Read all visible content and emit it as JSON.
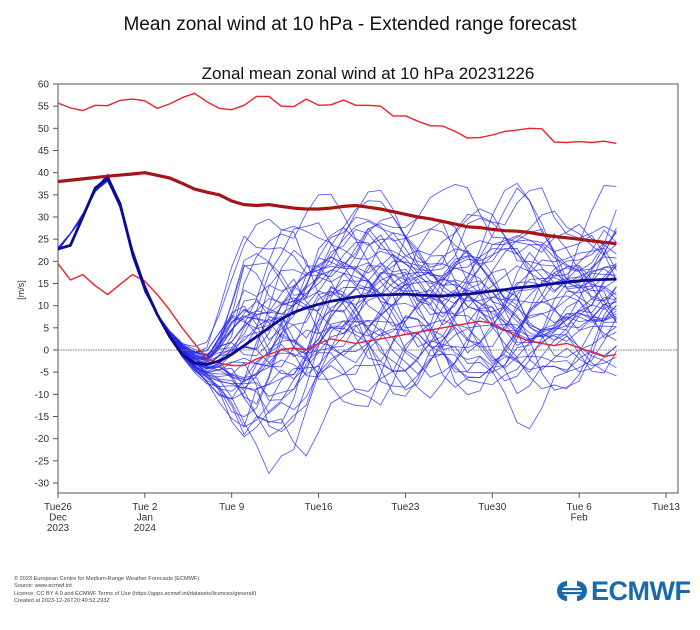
{
  "header": {
    "title": "Mean zonal wind at 10 hPa - Extended range forecast"
  },
  "chart_data": {
    "type": "line",
    "title": "Zonal mean zonal wind at 10 hPa 20231226",
    "xlabel": "",
    "ylabel": "[m/s]",
    "ylim": [
      -32.5,
      60
    ],
    "xlim_days": [
      0,
      49
    ],
    "y_ticks": [
      60,
      55,
      50,
      45,
      40,
      35,
      30,
      25,
      20,
      15,
      10,
      5,
      0,
      -5,
      -10,
      -15,
      -20,
      -25,
      -30
    ],
    "x_ticks": [
      {
        "day": 0,
        "lines": [
          "Tue26",
          "Dec",
          "2023"
        ]
      },
      {
        "day": 7,
        "lines": [
          "Tue 2",
          "Jan",
          "2024"
        ]
      },
      {
        "day": 14,
        "lines": [
          "Tue 9"
        ]
      },
      {
        "day": 21,
        "lines": [
          "Tue16"
        ]
      },
      {
        "day": 28,
        "lines": [
          "Tue23"
        ]
      },
      {
        "day": 35,
        "lines": [
          "Tue30"
        ]
      },
      {
        "day": 42,
        "lines": [
          "Tue 6",
          "Feb"
        ]
      },
      {
        "day": 49,
        "lines": [
          "Tue13"
        ]
      }
    ],
    "zero_line": true,
    "colors": {
      "climate_extremes": "#e8252b",
      "climate_mean": "#a81414",
      "ensemble_members": "#2a2ae6",
      "ensemble_mean": "#0b0b8c",
      "zero_line": "#777777"
    },
    "series": [
      {
        "name": "climatological-maximum",
        "x": [
          0,
          1,
          2,
          3,
          4,
          5,
          6,
          7,
          8,
          9,
          10,
          11,
          12,
          13,
          14,
          15,
          16,
          17,
          18,
          19,
          20,
          21,
          22,
          23,
          24,
          25,
          26,
          27,
          28,
          29,
          30,
          31,
          32,
          33,
          34,
          35,
          36,
          37,
          38,
          39,
          40,
          41,
          42,
          43,
          44,
          45
        ],
        "values": [
          55.7,
          54.6,
          54.0,
          55.2,
          55.1,
          56.3,
          56.6,
          56.2,
          54.5,
          55.5,
          56.9,
          57.9,
          56.0,
          54.5,
          54.2,
          55.2,
          57.2,
          57.2,
          55.0,
          54.9,
          56.6,
          55.2,
          55.3,
          56.4,
          55.2,
          55.2,
          55.0,
          52.8,
          52.8,
          51.6,
          50.6,
          50.5,
          49.3,
          47.8,
          47.9,
          48.5,
          49.3,
          49.6,
          50.0,
          49.9,
          46.9,
          46.8,
          47.0,
          46.8,
          47.1,
          46.6
        ]
      },
      {
        "name": "climatological-minimum",
        "x": [
          0,
          1,
          2,
          3,
          4,
          5,
          6,
          7,
          8,
          9,
          10,
          11,
          12,
          13,
          14,
          15,
          16,
          17,
          18,
          19,
          20,
          21,
          22,
          23,
          24,
          25,
          26,
          27,
          28,
          29,
          30,
          31,
          32,
          33,
          34,
          35,
          36,
          37,
          38,
          39,
          40,
          41,
          42,
          43,
          44,
          45
        ],
        "values": [
          19.5,
          15.8,
          17.0,
          14.5,
          12.5,
          14.8,
          17.0,
          15.5,
          12.5,
          9.0,
          5.0,
          1.5,
          -2.0,
          -3.0,
          -3.5,
          -3.5,
          -2.0,
          -1.0,
          0.0,
          0.5,
          0.0,
          1.5,
          2.5,
          2.0,
          1.5,
          2.0,
          2.5,
          3.0,
          3.5,
          4.0,
          4.5,
          5.0,
          5.5,
          6.0,
          6.5,
          6.0,
          4.5,
          3.0,
          2.0,
          1.5,
          1.0,
          1.5,
          0.5,
          -0.5,
          -1.5,
          -1.0
        ]
      },
      {
        "name": "climatological-mean",
        "x": [
          0,
          2,
          4,
          6,
          7,
          8,
          9,
          10,
          11,
          12,
          13,
          14,
          15,
          16,
          17,
          18,
          19,
          20,
          21,
          22,
          23,
          24,
          25,
          26,
          27,
          28,
          29,
          30,
          31,
          32,
          33,
          34,
          35,
          36,
          37,
          38,
          39,
          40,
          41,
          42,
          43,
          44,
          45
        ],
        "values": [
          38.0,
          38.6,
          39.2,
          39.7,
          40.0,
          39.4,
          38.8,
          37.6,
          36.3,
          35.6,
          35.0,
          33.6,
          32.8,
          32.6,
          32.8,
          32.4,
          32.0,
          31.8,
          31.8,
          32.0,
          32.4,
          32.6,
          32.2,
          31.8,
          31.2,
          30.6,
          30.0,
          29.6,
          29.0,
          28.4,
          27.8,
          27.6,
          27.2,
          26.9,
          26.8,
          26.5,
          26.0,
          25.6,
          25.3,
          25.0,
          24.6,
          24.3,
          24.0
        ]
      },
      {
        "name": "ensemble-mean",
        "x": [
          0,
          1,
          2,
          3,
          4,
          5,
          6,
          7,
          8,
          9,
          10,
          11,
          12,
          13,
          14,
          15,
          16,
          17,
          18,
          19,
          20,
          21,
          22,
          23,
          24,
          25,
          26,
          27,
          28,
          29,
          30,
          31,
          32,
          33,
          34,
          35,
          36,
          37,
          38,
          39,
          40,
          41,
          42,
          43,
          44,
          45
        ],
        "values": [
          22.8,
          23.6,
          30.0,
          36.5,
          38.8,
          33.0,
          22.0,
          14.0,
          8.0,
          3.0,
          -1.0,
          -3.0,
          -3.2,
          -2.5,
          -1.0,
          1.0,
          3.0,
          5.0,
          7.0,
          8.5,
          9.5,
          10.3,
          11.0,
          11.5,
          12.0,
          12.2,
          12.4,
          12.5,
          12.6,
          12.4,
          12.3,
          12.2,
          12.4,
          12.6,
          12.9,
          13.3,
          13.6,
          14.0,
          14.3,
          14.6,
          15.0,
          15.3,
          15.6,
          15.8,
          15.9,
          16.0
        ]
      }
    ],
    "ensemble": {
      "member_count": 51,
      "note": "individual ensemble member trajectories (thin blue); tightly clustered days 0-8, spread ~ -30 to +41 m/s later",
      "spread_by_day": [
        {
          "day": 0,
          "min": 22.5,
          "max": 23.0
        },
        {
          "day": 4,
          "min": 37.5,
          "max": 40.5
        },
        {
          "day": 8,
          "min": 4.0,
          "max": 12.0
        },
        {
          "day": 12,
          "min": -14.0,
          "max": 6.0
        },
        {
          "day": 15,
          "min": -27.0,
          "max": 34.0
        },
        {
          "day": 17,
          "min": -30.5,
          "max": 36.0
        },
        {
          "day": 20,
          "min": -25.0,
          "max": 36.0
        },
        {
          "day": 22,
          "min": -12.0,
          "max": 41.5
        },
        {
          "day": 30,
          "min": -14.0,
          "max": 40.0
        },
        {
          "day": 35,
          "min": -20.0,
          "max": 38.0
        },
        {
          "day": 40,
          "min": -20.0,
          "max": 37.0
        },
        {
          "day": 45,
          "min": -18.0,
          "max": 38.0
        }
      ]
    }
  },
  "footer": {
    "lines": [
      "© 2023 European Centre for Medium-Range Weather Forecasts (ECMWF)",
      "Source: www.ecmwf.int",
      "Licence: CC BY 4.0 and ECMWF Terms of Use (https://apps.ecmwf.int/datasets/licences/general/)",
      "Created at 2023-12-26T20:40:52.293Z"
    ],
    "logo_text": "ECMWF",
    "logo_color": "#1a6aab"
  }
}
